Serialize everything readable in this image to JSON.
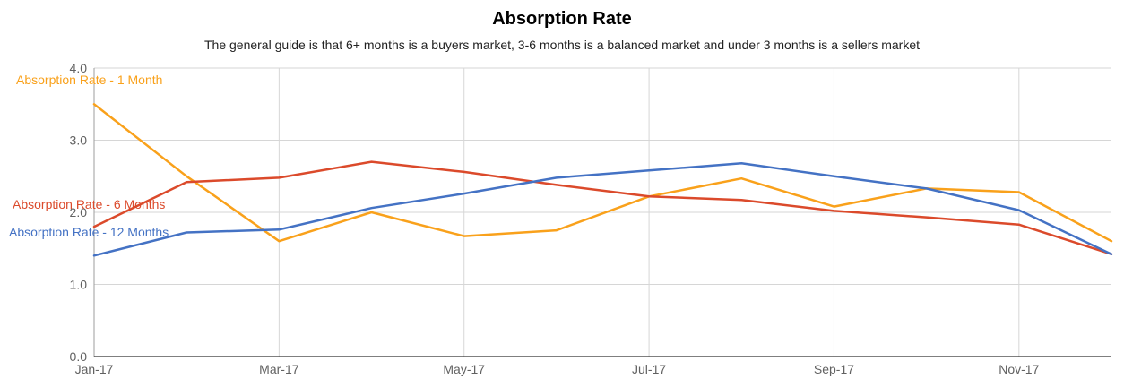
{
  "chart_data": {
    "type": "line",
    "title": "Absorption Rate",
    "subtitle": "The general guide is that 6+ months is a buyers market, 3-6 months is a balanced market and under 3 months is a sellers market",
    "x": [
      "Jan-17",
      "Feb-17",
      "Mar-17",
      "Apr-17",
      "May-17",
      "Jun-17",
      "Jul-17",
      "Aug-17",
      "Sep-17",
      "Oct-17",
      "Nov-17",
      "Dec-17"
    ],
    "x_tick_labels": [
      "Jan-17",
      "Mar-17",
      "May-17",
      "Jul-17",
      "Sep-17",
      "Nov-17"
    ],
    "y_tick_labels": [
      "0.0",
      "1.0",
      "2.0",
      "3.0",
      "4.0"
    ],
    "ylim": [
      0,
      4
    ],
    "grid": true,
    "legend": "inline labels at left",
    "series": [
      {
        "name": "Absorption Rate - 1 Month",
        "color": "#f9a11b",
        "values": [
          3.5,
          2.5,
          1.6,
          2.0,
          1.67,
          1.75,
          2.22,
          2.47,
          2.08,
          2.33,
          2.28,
          1.6
        ]
      },
      {
        "name": "Absorption Rate - 6 Months",
        "color": "#db4a2b",
        "values": [
          1.8,
          2.42,
          2.48,
          2.7,
          2.56,
          2.38,
          2.22,
          2.17,
          2.02,
          1.93,
          1.83,
          1.42
        ]
      },
      {
        "name": "Absorption Rate - 12 Months",
        "color": "#4472c4",
        "values": [
          1.4,
          1.72,
          1.76,
          2.06,
          2.26,
          2.48,
          2.58,
          2.68,
          2.5,
          2.33,
          2.03,
          1.42
        ]
      }
    ]
  }
}
